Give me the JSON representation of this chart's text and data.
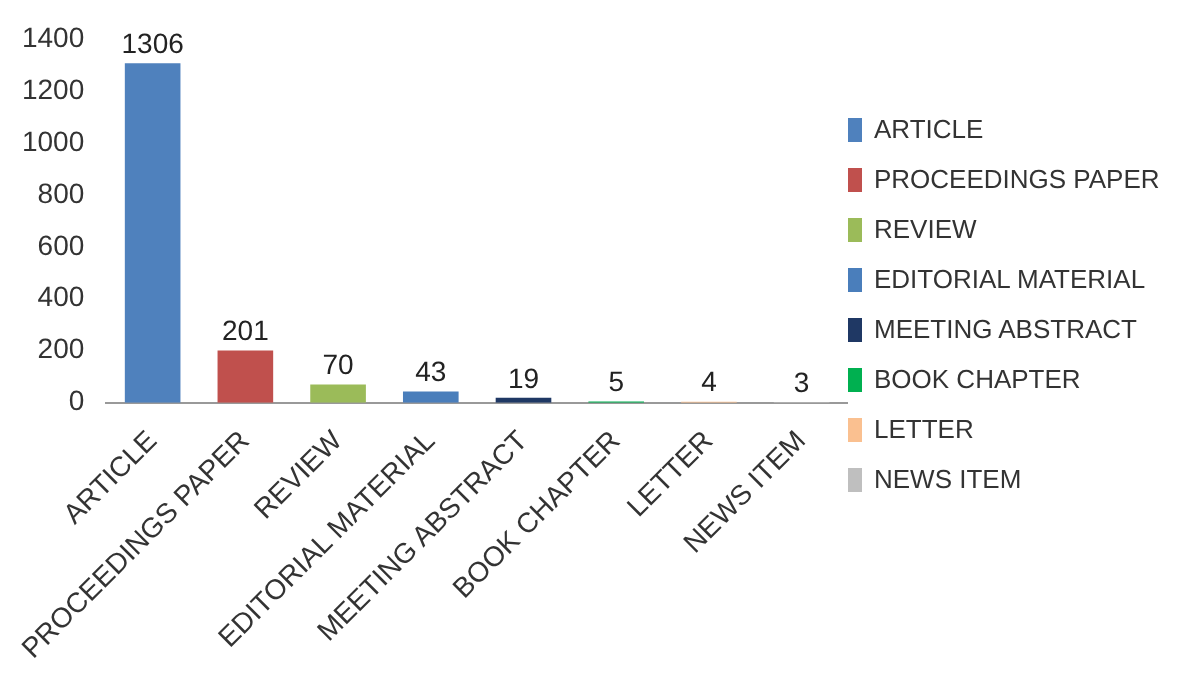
{
  "chart_data": {
    "type": "bar",
    "categories": [
      "ARTICLE",
      "PROCEEDINGS PAPER",
      "REVIEW",
      "EDITORIAL MATERIAL",
      "MEETING ABSTRACT",
      "BOOK CHAPTER",
      "LETTER",
      "NEWS ITEM"
    ],
    "series": [
      {
        "name": "ARTICLE",
        "color": "#4f81bd",
        "values": [
          1306,
          null,
          null,
          null,
          null,
          null,
          null,
          null
        ]
      },
      {
        "name": "PROCEEDINGS PAPER",
        "color": "#c0504d",
        "values": [
          null,
          201,
          null,
          null,
          null,
          null,
          null,
          null
        ]
      },
      {
        "name": "REVIEW",
        "color": "#9bbb59",
        "values": [
          null,
          null,
          70,
          null,
          null,
          null,
          null,
          null
        ]
      },
      {
        "name": "EDITORIAL MATERIAL",
        "color": "#4a7ebb",
        "values": [
          null,
          null,
          null,
          43,
          null,
          null,
          null,
          null
        ]
      },
      {
        "name": "MEETING ABSTRACT",
        "color": "#1f3864",
        "values": [
          null,
          null,
          null,
          null,
          19,
          null,
          null,
          null
        ]
      },
      {
        "name": "BOOK CHAPTER",
        "color": "#00b050",
        "values": [
          null,
          null,
          null,
          null,
          null,
          5,
          null,
          null
        ]
      },
      {
        "name": "LETTER",
        "color": "#fac090",
        "values": [
          null,
          null,
          null,
          null,
          null,
          null,
          4,
          null
        ]
      },
      {
        "name": "NEWS ITEM",
        "color": "#bfbfbf",
        "values": [
          null,
          null,
          null,
          null,
          null,
          null,
          null,
          3
        ]
      }
    ],
    "ylim": [
      0,
      1400
    ],
    "yticks": [
      0,
      200,
      400,
      600,
      800,
      1000,
      1200,
      1400
    ],
    "data_labels": true,
    "legend": "right",
    "grid": false
  }
}
